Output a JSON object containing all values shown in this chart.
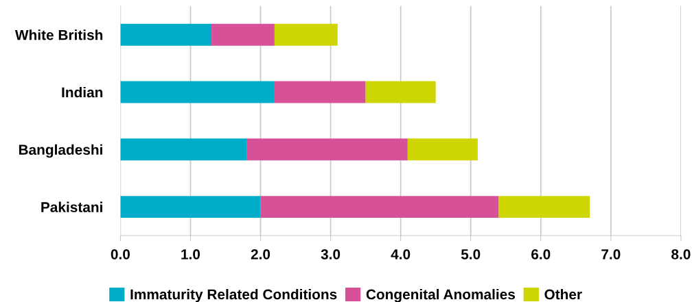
{
  "chart_data": {
    "type": "bar",
    "orientation": "horizontal",
    "stacked": true,
    "categories": [
      "White British",
      "Indian",
      "Bangladeshi",
      "Pakistani"
    ],
    "series": [
      {
        "name": "Immaturity Related Conditions",
        "color": "#00adc8",
        "values": [
          1.3,
          2.2,
          1.8,
          2.0
        ]
      },
      {
        "name": "Congenital Anomalies",
        "color": "#d65197",
        "values": [
          0.9,
          1.3,
          2.3,
          3.4
        ]
      },
      {
        "name": "Other",
        "color": "#cdd600",
        "values": [
          0.9,
          1.0,
          1.0,
          1.3
        ]
      }
    ],
    "xlim": [
      0,
      8
    ],
    "xticks": [
      {
        "value": 0,
        "label": "0.0"
      },
      {
        "value": 1,
        "label": "1.0"
      },
      {
        "value": 2,
        "label": "2.0"
      },
      {
        "value": 3,
        "label": "3.0"
      },
      {
        "value": 4,
        "label": "4.0"
      },
      {
        "value": 5,
        "label": "5.0"
      },
      {
        "value": 6,
        "label": "6.0"
      },
      {
        "value": 7,
        "label": "7.0"
      },
      {
        "value": 8,
        "label": "8.0"
      }
    ],
    "grid": "x",
    "legend": "bottom"
  }
}
